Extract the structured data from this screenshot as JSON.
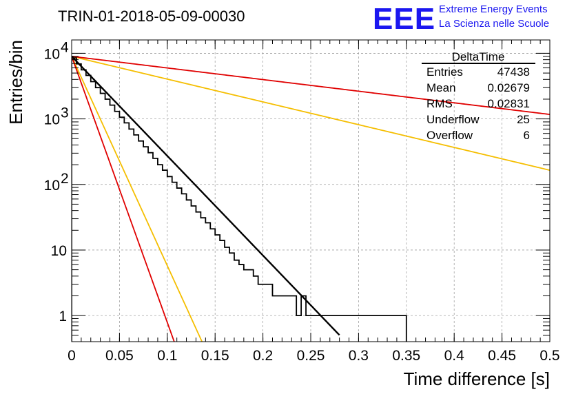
{
  "header": {
    "title": "TRIN-01-2018-05-09-00030",
    "logo_text": "EEE",
    "logo_line1": "Extreme Energy Events",
    "logo_line2": "La Scienza nelle Scuole"
  },
  "stats": {
    "title": "DeltaTime",
    "rows": [
      {
        "label": "Entries",
        "value": "47438"
      },
      {
        "label": "Mean",
        "value": "0.02679"
      },
      {
        "label": "RMS",
        "value": "0.02831"
      },
      {
        "label": "Underflow",
        "value": "25"
      },
      {
        "label": "Overflow",
        "value": "6"
      }
    ]
  },
  "colors": {
    "histogram": "#000000",
    "fit": "#000000",
    "red_curves": "#e00000",
    "yellow_curves": "#f5be00",
    "grid": "#a0a0a0"
  },
  "chart_data": {
    "type": "line",
    "xlabel": "Time difference [s]",
    "ylabel": "Entries/bin",
    "xlim": [
      0,
      0.5
    ],
    "ylim": [
      0.4,
      16000
    ],
    "y_scale": "log",
    "grid": true,
    "legend": "top-right stats box",
    "x_ticks": [
      "0",
      "0.05",
      "0.1",
      "0.15",
      "0.2",
      "0.25",
      "0.3",
      "0.35",
      "0.4",
      "0.45",
      "0.5"
    ],
    "x_tick_values": [
      0,
      0.05,
      0.1,
      0.15,
      0.2,
      0.25,
      0.3,
      0.35,
      0.4,
      0.45,
      0.5
    ],
    "y_ticks": [
      {
        "value": 1,
        "base": "1",
        "exp": ""
      },
      {
        "value": 10,
        "base": "10",
        "exp": ""
      },
      {
        "value": 100,
        "base": "10",
        "exp": "2"
      },
      {
        "value": 1000,
        "base": "10",
        "exp": "3"
      },
      {
        "value": 10000,
        "base": "10",
        "exp": "4"
      }
    ],
    "histogram": {
      "bin_width": 0.005,
      "x_start": 0,
      "counts": [
        8500,
        6900,
        5600,
        4600,
        3700,
        3000,
        2450,
        2000,
        1620,
        1300,
        1060,
        870,
        700,
        570,
        460,
        375,
        305,
        250,
        200,
        165,
        132,
        108,
        88,
        72,
        58,
        47,
        38,
        31,
        26,
        21,
        17,
        14,
        11,
        9,
        7,
        6,
        5,
        5,
        4,
        3,
        3,
        3,
        2,
        2,
        2,
        2,
        2,
        1,
        2,
        1,
        1,
        1,
        1,
        1,
        1,
        1,
        1,
        1,
        1,
        1,
        1,
        1,
        1,
        1,
        1,
        1,
        1,
        1,
        1,
        1
      ]
    },
    "series": [
      {
        "color": "black",
        "A": 9000,
        "tau": 0.0286,
        "x_range": [
          0,
          0.28
        ],
        "width": 2.4
      },
      {
        "color": "red",
        "A": 9000,
        "tau": 0.0107,
        "x_range": [
          0,
          0.5
        ],
        "width": 1.8
      },
      {
        "color": "red",
        "A": 9000,
        "tau": 0.245,
        "x_range": [
          0,
          0.5
        ],
        "width": 1.8
      },
      {
        "color": "yellow",
        "A": 9000,
        "tau": 0.0136,
        "x_range": [
          0,
          0.5
        ],
        "width": 1.8
      },
      {
        "color": "yellow",
        "A": 9000,
        "tau": 0.125,
        "x_range": [
          0,
          0.5
        ],
        "width": 1.8
      }
    ]
  }
}
